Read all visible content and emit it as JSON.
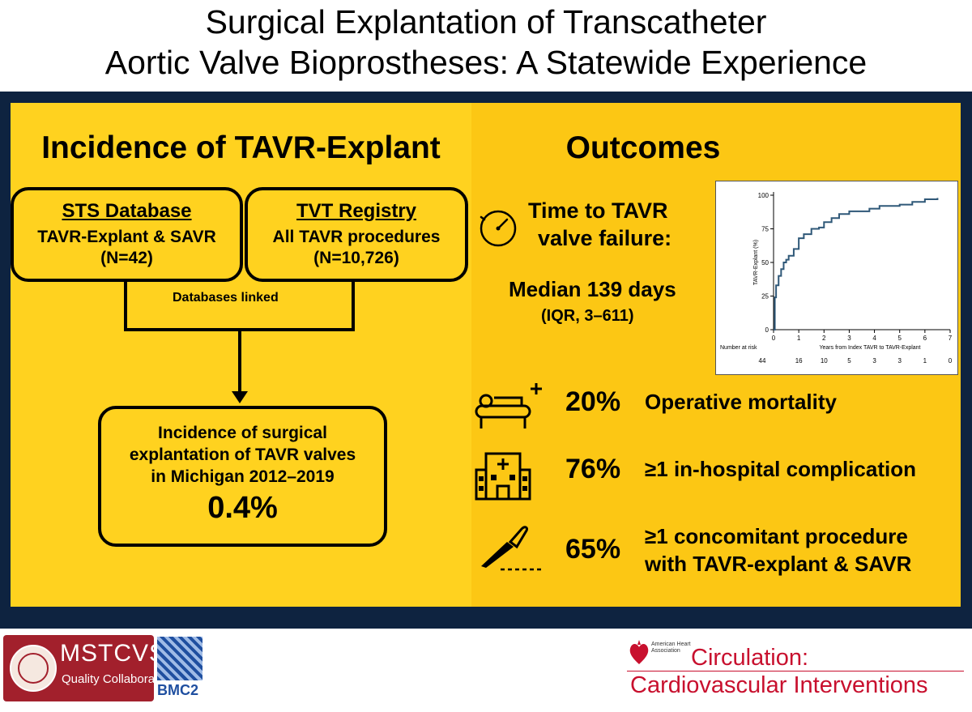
{
  "title": {
    "line1": "Surgical Explantation of Transcatheter",
    "line2": "Aortic Valve Bioprostheses: A Statewide Experience"
  },
  "left": {
    "heading": "Incidence of TAVR-Explant",
    "sts": {
      "name": "STS Database",
      "desc": "TAVR-Explant & SAVR",
      "n": "(N=42)"
    },
    "tvt": {
      "name": "TVT Registry",
      "desc": "All TAVR procedures",
      "n": "(N=10,726)"
    },
    "linked": "Databases linked",
    "result": {
      "line1": "Incidence of surgical",
      "line2": "explantation of TAVR valves",
      "line3": "in Michigan 2012–2019",
      "value": "0.4%"
    }
  },
  "right": {
    "heading": "Outcomes",
    "time": {
      "line1": "Time to TAVR",
      "line2": "valve failure:",
      "median": "Median 139 days",
      "iqr": "(IQR, 3–611)"
    },
    "stats": [
      {
        "pct": "20%",
        "label1": "Operative mortality",
        "label2": "",
        "icon": "hospital-bed-icon"
      },
      {
        "pct": "76%",
        "label1": "≥1 in-hospital complication",
        "label2": "",
        "icon": "hospital-building-icon"
      },
      {
        "pct": "65%",
        "label1": "≥1 concomitant procedure",
        "label2": "with TAVR-explant & SAVR",
        "icon": "scalpel-icon"
      }
    ]
  },
  "chart_data": {
    "type": "line",
    "xlabel": "Years from Index TAVR to TAVR-Explant",
    "ylabel": "TAVR-Explant (%)",
    "xlim": [
      0,
      7
    ],
    "ylim": [
      0,
      100
    ],
    "x_ticks": [
      "0",
      "1",
      "2",
      "3",
      "4",
      "5",
      "6",
      "7"
    ],
    "y_ticks": [
      "0",
      "25",
      "50",
      "75",
      "100"
    ],
    "series": [
      {
        "x": [
          0,
          0.05,
          0.1,
          0.2,
          0.3,
          0.4,
          0.5,
          0.6,
          0.8,
          1.0,
          1.2,
          1.5,
          1.8,
          2.0,
          2.3,
          2.6,
          3.0,
          3.3,
          3.8,
          4.2,
          5.0,
          5.5,
          6.0,
          6.5
        ],
        "y": [
          0,
          24,
          33,
          40,
          45,
          50,
          52,
          55,
          60,
          68,
          71,
          75,
          76,
          80,
          83,
          86,
          88,
          88,
          90,
          92,
          93,
          95,
          97,
          98
        ]
      }
    ],
    "risk_table": {
      "label": "Number at risk",
      "values": [
        "44",
        "16",
        "10",
        "5",
        "3",
        "3",
        "1",
        "0"
      ]
    }
  },
  "logos": {
    "mstcvs": "MSTCVS",
    "mstcvs_sub": "Quality Collaborative",
    "bmc2": "BMC2",
    "aha": "American Heart Association",
    "journal1": "Circulation:",
    "journal2": "Cardiovascular Interventions"
  },
  "colors": {
    "navy": "#0e2340",
    "yellow": "#ffd21f",
    "gold": "#fcc714",
    "km_line": "#2f5878",
    "journal_red": "#c8102e"
  }
}
